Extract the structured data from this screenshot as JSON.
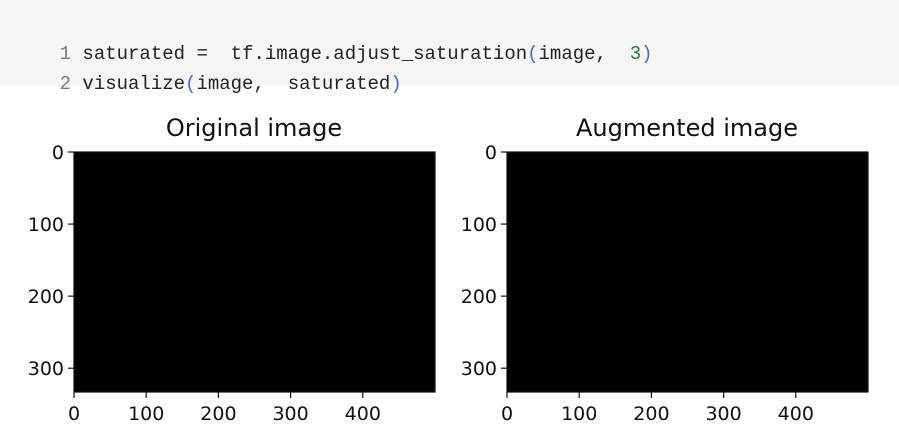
{
  "code": {
    "lines": [
      {
        "num": "1",
        "pre": "saturated",
        "op": " = ",
        "call": "tf.image.adjust_saturation",
        "args": "image, ",
        "num_arg": "3"
      },
      {
        "num": "2",
        "pre": "visualize",
        "args2": "image, ",
        "arg3": "saturated"
      }
    ]
  },
  "chart_data": [
    {
      "type": "image",
      "title": "Original image",
      "xticks": [
        "0",
        "100",
        "200",
        "300",
        "400"
      ],
      "yticks": [
        "0",
        "100",
        "200",
        "300"
      ],
      "xlim": [
        0,
        500
      ],
      "ylim": [
        333,
        0
      ]
    },
    {
      "type": "image",
      "title": "Augmented image",
      "xticks": [
        "0",
        "100",
        "200",
        "300",
        "400"
      ],
      "yticks": [
        "0",
        "100",
        "200",
        "300"
      ],
      "xlim": [
        0,
        500
      ],
      "ylim": [
        333,
        0
      ]
    }
  ]
}
